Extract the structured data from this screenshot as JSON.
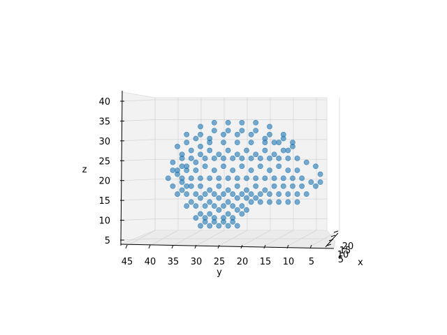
{
  "chart_data": {
    "type": "scatter",
    "projection": "3d",
    "title": "",
    "xlabel": "x",
    "ylabel": "y",
    "zlabel": "z",
    "x_ticks": [
      "5",
      "10",
      "15",
      "20"
    ],
    "y_ticks": [
      "45",
      "40",
      "35",
      "30",
      "25",
      "20",
      "15",
      "10",
      "5"
    ],
    "z_ticks": [
      "5",
      "10",
      "15",
      "20",
      "25",
      "30",
      "35",
      "40"
    ],
    "ylim": [
      2,
      48
    ],
    "zlim": [
      3,
      42
    ],
    "grid": true,
    "legend": "none",
    "marker_color": "#1f77b4",
    "marker_alpha": 0.6,
    "series": [
      {
        "description_of_shape": "voxel point cloud",
        "points_yz": [
          [
            35,
            30
          ],
          [
            33,
            33
          ],
          [
            30,
            35
          ],
          [
            27,
            36
          ],
          [
            24,
            36
          ],
          [
            21,
            36
          ],
          [
            18,
            36
          ],
          [
            15,
            35
          ],
          [
            12,
            33
          ],
          [
            10,
            31
          ],
          [
            36,
            26
          ],
          [
            34,
            28
          ],
          [
            32,
            29
          ],
          [
            30,
            30
          ],
          [
            28,
            31
          ],
          [
            25,
            31
          ],
          [
            22,
            31
          ],
          [
            19,
            31
          ],
          [
            16,
            31
          ],
          [
            14,
            31
          ],
          [
            37,
            22
          ],
          [
            35,
            24
          ],
          [
            33,
            25
          ],
          [
            31,
            26
          ],
          [
            29,
            27
          ],
          [
            27,
            27
          ],
          [
            25,
            27
          ],
          [
            23,
            27
          ],
          [
            21,
            27
          ],
          [
            19,
            27
          ],
          [
            17,
            27
          ],
          [
            15,
            27
          ],
          [
            13,
            27
          ],
          [
            11,
            27
          ],
          [
            9,
            27
          ],
          [
            7,
            26
          ],
          [
            5,
            25
          ],
          [
            4,
            23
          ],
          [
            4,
            21
          ],
          [
            36,
            20
          ],
          [
            34,
            21
          ],
          [
            32,
            22
          ],
          [
            30,
            22
          ],
          [
            28,
            22
          ],
          [
            26,
            22
          ],
          [
            24,
            22
          ],
          [
            22,
            22
          ],
          [
            20,
            22
          ],
          [
            18,
            22
          ],
          [
            16,
            22
          ],
          [
            14,
            22
          ],
          [
            12,
            22
          ],
          [
            10,
            22
          ],
          [
            8,
            22
          ],
          [
            6,
            21
          ],
          [
            5,
            20
          ],
          [
            35,
            18
          ],
          [
            33,
            18
          ],
          [
            31,
            18
          ],
          [
            29,
            18
          ],
          [
            27,
            18
          ],
          [
            25,
            18
          ],
          [
            23,
            18
          ],
          [
            21,
            18
          ],
          [
            19,
            18
          ],
          [
            17,
            18
          ],
          [
            15,
            18
          ],
          [
            13,
            18
          ],
          [
            11,
            18
          ],
          [
            9,
            18
          ],
          [
            7,
            18
          ],
          [
            33,
            15
          ],
          [
            31,
            15
          ],
          [
            29,
            15
          ],
          [
            27,
            15
          ],
          [
            25,
            15
          ],
          [
            23,
            15
          ],
          [
            21,
            15
          ],
          [
            19,
            16
          ],
          [
            17,
            16
          ],
          [
            15,
            16
          ],
          [
            13,
            16
          ],
          [
            11,
            16
          ],
          [
            9,
            16
          ],
          [
            31,
            12
          ],
          [
            29,
            12
          ],
          [
            27,
            12
          ],
          [
            25,
            12
          ],
          [
            23,
            12
          ],
          [
            21,
            13
          ],
          [
            30,
            10
          ],
          [
            28,
            10
          ],
          [
            26,
            10
          ],
          [
            24,
            10
          ],
          [
            22,
            10
          ],
          [
            10,
            30
          ],
          [
            12,
            29
          ],
          [
            14,
            28
          ],
          [
            16,
            29
          ],
          [
            18,
            28
          ],
          [
            20,
            29
          ],
          [
            22,
            28
          ],
          [
            24,
            29
          ],
          [
            26,
            28
          ],
          [
            28,
            29
          ],
          [
            30,
            28
          ],
          [
            32,
            27
          ],
          [
            34,
            27
          ],
          [
            9,
            24
          ],
          [
            11,
            24
          ],
          [
            13,
            25
          ],
          [
            15,
            24
          ],
          [
            17,
            25
          ],
          [
            19,
            24
          ],
          [
            21,
            25
          ],
          [
            23,
            24
          ],
          [
            25,
            25
          ],
          [
            27,
            24
          ],
          [
            29,
            25
          ],
          [
            31,
            24
          ],
          [
            33,
            24
          ],
          [
            35,
            23
          ],
          [
            8,
            20
          ],
          [
            10,
            20
          ],
          [
            12,
            20
          ],
          [
            14,
            20
          ],
          [
            16,
            19
          ],
          [
            18,
            20
          ],
          [
            20,
            19
          ],
          [
            22,
            20
          ],
          [
            24,
            19
          ],
          [
            26,
            20
          ],
          [
            28,
            19
          ],
          [
            30,
            20
          ],
          [
            32,
            20
          ],
          [
            34,
            19
          ],
          [
            32,
            16
          ],
          [
            30,
            17
          ],
          [
            28,
            16
          ],
          [
            26,
            17
          ],
          [
            24,
            16
          ],
          [
            22,
            17
          ],
          [
            20,
            17
          ],
          [
            18,
            17
          ],
          [
            30,
            13
          ],
          [
            28,
            13
          ],
          [
            26,
            14
          ],
          [
            24,
            13
          ],
          [
            22,
            14
          ],
          [
            20,
            14
          ],
          [
            29,
            11
          ],
          [
            27,
            11
          ],
          [
            25,
            11
          ],
          [
            23,
            11
          ],
          [
            30,
            33
          ],
          [
            27,
            34
          ],
          [
            24,
            34
          ],
          [
            21,
            34
          ],
          [
            18,
            34
          ],
          [
            15,
            33
          ],
          [
            12,
            32
          ],
          [
            33,
            31
          ],
          [
            31,
            32
          ],
          [
            28,
            32
          ],
          [
            25,
            33
          ],
          [
            22,
            33
          ],
          [
            19,
            33
          ],
          [
            16,
            32
          ],
          [
            13,
            31
          ],
          [
            11,
            29
          ],
          [
            34,
            22
          ],
          [
            33,
            20
          ],
          [
            36,
            24
          ],
          [
            34,
            25
          ]
        ]
      }
    ]
  }
}
